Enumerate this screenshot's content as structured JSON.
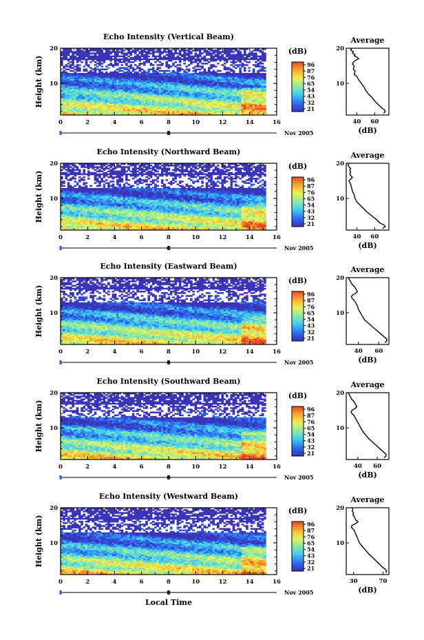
{
  "chart_data": [
    {
      "type": "heatmap",
      "title": "Echo Intensity (Vertical Beam)",
      "ylabel": "Height (km)",
      "x_ticks": [
        "0",
        "2",
        "4",
        "6",
        "8",
        "10",
        "12",
        "14",
        "16"
      ],
      "y_ticks": [
        "10",
        "20"
      ],
      "xlim": [
        0,
        16
      ],
      "ylim": [
        1,
        20
      ],
      "date_label": "8",
      "month_label": "Nov 2005",
      "colorbar": {
        "unit": "(dB)",
        "ticks": [
          "96",
          "87",
          "76",
          "65",
          "54",
          "43",
          "32",
          "21"
        ]
      },
      "profile": {
        "title": "Average",
        "xlabel": "(dB)",
        "x_ticks": [
          "40",
          "60"
        ],
        "y_ticks": [
          "10",
          "20"
        ],
        "xlim": [
          28,
          76
        ],
        "points": [
          [
            34,
            20
          ],
          [
            33,
            19.5
          ],
          [
            36,
            19
          ],
          [
            35,
            18.6
          ],
          [
            38,
            18.2
          ],
          [
            37,
            17.8
          ],
          [
            40,
            17.5
          ],
          [
            42,
            17
          ],
          [
            38,
            16.5
          ],
          [
            36,
            16
          ],
          [
            35,
            15.5
          ],
          [
            37,
            15
          ],
          [
            36,
            14
          ],
          [
            38,
            13.5
          ],
          [
            37,
            12.5
          ],
          [
            40,
            12
          ],
          [
            42,
            11
          ],
          [
            45,
            10
          ],
          [
            48,
            9
          ],
          [
            50,
            8
          ],
          [
            53,
            7
          ],
          [
            57,
            6
          ],
          [
            60,
            5
          ],
          [
            64,
            4
          ],
          [
            68,
            3
          ],
          [
            71,
            2.5
          ],
          [
            72,
            2
          ],
          [
            70,
            1.5
          ]
        ]
      }
    },
    {
      "type": "heatmap",
      "title": "Echo Intensity (Northward Beam)",
      "ylabel": "Height (km)",
      "x_ticks": [
        "0",
        "2",
        "4",
        "6",
        "8",
        "10",
        "12",
        "14",
        "16"
      ],
      "y_ticks": [
        "10",
        "20"
      ],
      "xlim": [
        0,
        16
      ],
      "ylim": [
        1,
        20
      ],
      "date_label": "8",
      "month_label": "Nov 2005",
      "colorbar": {
        "unit": "(dB)",
        "ticks": [
          "96",
          "87",
          "76",
          "65",
          "54",
          "43",
          "32",
          "21"
        ]
      },
      "profile": {
        "title": "Average",
        "xlabel": "(dB)",
        "x_ticks": [
          "40",
          "60"
        ],
        "y_ticks": [
          "10",
          "20"
        ],
        "xlim": [
          28,
          76
        ],
        "points": [
          [
            31,
            20
          ],
          [
            30,
            19.5
          ],
          [
            31,
            19
          ],
          [
            33,
            18.5
          ],
          [
            32,
            18
          ],
          [
            33,
            17.5
          ],
          [
            32,
            17
          ],
          [
            33,
            16.5
          ],
          [
            35,
            16
          ],
          [
            33,
            15.5
          ],
          [
            31,
            15
          ],
          [
            32,
            14.5
          ],
          [
            33,
            14
          ],
          [
            34,
            13
          ],
          [
            35,
            12
          ],
          [
            37,
            11
          ],
          [
            38,
            10
          ],
          [
            40,
            9
          ],
          [
            44,
            8
          ],
          [
            48,
            7
          ],
          [
            52,
            6
          ],
          [
            57,
            5
          ],
          [
            62,
            4
          ],
          [
            66,
            3
          ],
          [
            70,
            2.5
          ],
          [
            72,
            2
          ],
          [
            69,
            1.5
          ]
        ]
      }
    },
    {
      "type": "heatmap",
      "title": "Echo Intensity (Eastward Beam)",
      "ylabel": "Height (km)",
      "x_ticks": [
        "0",
        "2",
        "4",
        "6",
        "8",
        "10",
        "12",
        "14",
        "16"
      ],
      "y_ticks": [
        "10",
        "20"
      ],
      "xlim": [
        0,
        16
      ],
      "ylim": [
        1,
        20
      ],
      "date_label": "8",
      "month_label": "Nov 2005",
      "colorbar": {
        "unit": "(dB)",
        "ticks": [
          "96",
          "87",
          "76",
          "65",
          "54",
          "43",
          "32",
          "21"
        ]
      },
      "profile": {
        "title": "Average",
        "xlabel": "(dB)",
        "x_ticks": [
          "40",
          "60"
        ],
        "y_ticks": [
          "10",
          "20"
        ],
        "xlim": [
          28,
          70
        ],
        "points": [
          [
            30,
            20
          ],
          [
            31,
            19.5
          ],
          [
            32,
            19
          ],
          [
            33,
            18.5
          ],
          [
            34,
            18
          ],
          [
            36,
            17.5
          ],
          [
            37,
            17
          ],
          [
            38,
            16.5
          ],
          [
            39,
            16
          ],
          [
            37,
            15.5
          ],
          [
            34,
            15
          ],
          [
            33,
            14.5
          ],
          [
            34,
            14
          ],
          [
            36,
            13.5
          ],
          [
            38,
            12.5
          ],
          [
            39,
            12
          ],
          [
            40,
            11
          ],
          [
            42,
            10
          ],
          [
            44,
            9
          ],
          [
            46,
            8
          ],
          [
            50,
            7
          ],
          [
            54,
            6
          ],
          [
            58,
            5
          ],
          [
            62,
            4
          ],
          [
            66,
            3
          ],
          [
            68,
            2.5
          ],
          [
            68,
            2
          ],
          [
            66,
            1.5
          ]
        ]
      }
    },
    {
      "type": "heatmap",
      "title": "Echo Intensity (Southward Beam)",
      "ylabel": "Height (km)",
      "x_ticks": [
        "0",
        "2",
        "4",
        "6",
        "8",
        "10",
        "12",
        "14",
        "16"
      ],
      "y_ticks": [
        "10",
        "20"
      ],
      "xlim": [
        0,
        16
      ],
      "ylim": [
        1,
        20
      ],
      "date_label": "8",
      "month_label": "Nov 2005",
      "colorbar": {
        "unit": "(dB)",
        "ticks": [
          "96",
          "87",
          "76",
          "65",
          "54",
          "43",
          "32",
          "21"
        ]
      },
      "profile": {
        "title": "Average",
        "xlabel": "(dB)",
        "x_ticks": [
          "40",
          "60"
        ],
        "y_ticks": [
          "10",
          "20"
        ],
        "xlim": [
          28,
          72
        ],
        "points": [
          [
            30,
            20
          ],
          [
            31,
            19.5
          ],
          [
            32,
            19
          ],
          [
            33,
            18.5
          ],
          [
            34,
            18
          ],
          [
            36,
            17.5
          ],
          [
            37,
            17
          ],
          [
            38,
            16.5
          ],
          [
            39,
            16
          ],
          [
            37,
            15.5
          ],
          [
            34,
            15
          ],
          [
            33,
            14.5
          ],
          [
            34,
            14
          ],
          [
            36,
            13.5
          ],
          [
            38,
            12.5
          ],
          [
            39,
            12
          ],
          [
            41,
            11
          ],
          [
            43,
            10
          ],
          [
            45,
            9
          ],
          [
            48,
            8
          ],
          [
            51,
            7
          ],
          [
            55,
            6
          ],
          [
            59,
            5
          ],
          [
            63,
            4
          ],
          [
            67,
            3
          ],
          [
            69,
            2.5
          ],
          [
            69,
            2
          ],
          [
            67,
            1.5
          ]
        ]
      }
    },
    {
      "type": "heatmap",
      "title": "Echo Intensity (Westward Beam)",
      "ylabel": "Height (km)",
      "x_ticks": [
        "0",
        "2",
        "4",
        "6",
        "8",
        "10",
        "12",
        "14",
        "16"
      ],
      "y_ticks": [
        "10",
        "20"
      ],
      "xlim": [
        0,
        16
      ],
      "ylim": [
        1,
        20
      ],
      "date_label": "8",
      "month_label": "Nov 2005",
      "colorbar": {
        "unit": "(dB)",
        "ticks": [
          "96",
          "87",
          "76",
          "65",
          "54",
          "43",
          "32",
          "21"
        ]
      },
      "profile": {
        "title": "Average",
        "xlabel": "(dB)",
        "x_ticks": [
          "30",
          "70"
        ],
        "y_ticks": [
          "10",
          "20"
        ],
        "xlim": [
          20,
          78
        ],
        "points": [
          [
            28,
            20
          ],
          [
            29,
            19.5
          ],
          [
            28,
            19
          ],
          [
            30,
            18.5
          ],
          [
            29,
            18
          ],
          [
            31,
            17.5
          ],
          [
            32,
            17
          ],
          [
            33,
            16.5
          ],
          [
            36,
            16
          ],
          [
            33,
            15.5
          ],
          [
            28,
            15
          ],
          [
            27,
            14.5
          ],
          [
            29,
            14
          ],
          [
            31,
            13.5
          ],
          [
            33,
            12.5
          ],
          [
            34,
            12
          ],
          [
            36,
            11
          ],
          [
            38,
            10
          ],
          [
            42,
            9
          ],
          [
            46,
            8
          ],
          [
            50,
            7
          ],
          [
            55,
            6
          ],
          [
            60,
            5
          ],
          [
            65,
            4
          ],
          [
            70,
            3
          ],
          [
            73,
            2.5
          ],
          [
            75,
            2
          ],
          [
            74,
            1.5
          ]
        ]
      }
    }
  ],
  "xlabel": "Local Time",
  "colors": {
    "scale": [
      "#3b34b7",
      "#2f55e0",
      "#2f8cf0",
      "#43c6f2",
      "#6fe0c8",
      "#a8ec8a",
      "#e8f05a",
      "#f7c63a",
      "#f58a2c",
      "#e6452a"
    ],
    "profile_line": "#000000",
    "axis": "#000000"
  }
}
